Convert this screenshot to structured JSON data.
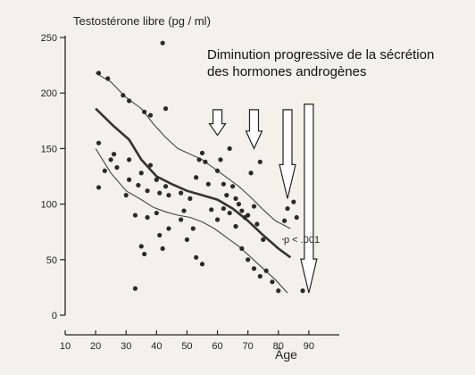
{
  "chart_data": {
    "type": "scatter",
    "ylabel": "Testostérone libre (pg / ml)",
    "xlabel": "Âge",
    "xlim": [
      10,
      100
    ],
    "ylim": [
      0,
      250
    ],
    "x_ticks": [
      10,
      20,
      30,
      40,
      50,
      60,
      70,
      80,
      90
    ],
    "y_ticks": [
      0,
      50,
      100,
      150,
      200,
      250
    ],
    "grid": false,
    "annotation_line1": "Diminution progressive de la sécrétion",
    "annotation_line2": "des hormones androgènes",
    "p_label": "p < .001",
    "points": [
      [
        21,
        218
      ],
      [
        24,
        213
      ],
      [
        29,
        198
      ],
      [
        31,
        193
      ],
      [
        36,
        183
      ],
      [
        38,
        180
      ],
      [
        42,
        245
      ],
      [
        43,
        186
      ],
      [
        21,
        155
      ],
      [
        25,
        140
      ],
      [
        27,
        133
      ],
      [
        31,
        122
      ],
      [
        34,
        117
      ],
      [
        37,
        112
      ],
      [
        41,
        110
      ],
      [
        44,
        108
      ],
      [
        21,
        115
      ],
      [
        23,
        130
      ],
      [
        26,
        145
      ],
      [
        31,
        140
      ],
      [
        35,
        128
      ],
      [
        38,
        135
      ],
      [
        40,
        122
      ],
      [
        43,
        116
      ],
      [
        30,
        108
      ],
      [
        33,
        90
      ],
      [
        37,
        88
      ],
      [
        40,
        92
      ],
      [
        41,
        72
      ],
      [
        44,
        78
      ],
      [
        35,
        62
      ],
      [
        42,
        60
      ],
      [
        33,
        24
      ],
      [
        36,
        55
      ],
      [
        48,
        86
      ],
      [
        49,
        94
      ],
      [
        51,
        105
      ],
      [
        53,
        124
      ],
      [
        54,
        140
      ],
      [
        55,
        146
      ],
      [
        56,
        138
      ],
      [
        57,
        118
      ],
      [
        58,
        95
      ],
      [
        52,
        78
      ],
      [
        50,
        68
      ],
      [
        53,
        52
      ],
      [
        55,
        46
      ],
      [
        48,
        110
      ],
      [
        60,
        130
      ],
      [
        61,
        140
      ],
      [
        62,
        118
      ],
      [
        63,
        108
      ],
      [
        64,
        150
      ],
      [
        65,
        116
      ],
      [
        66,
        105
      ],
      [
        67,
        100
      ],
      [
        68,
        94
      ],
      [
        69,
        88
      ],
      [
        60,
        86
      ],
      [
        62,
        96
      ],
      [
        64,
        92
      ],
      [
        66,
        80
      ],
      [
        70,
        90
      ],
      [
        71,
        128
      ],
      [
        72,
        98
      ],
      [
        73,
        82
      ],
      [
        74,
        138
      ],
      [
        75,
        68
      ],
      [
        68,
        60
      ],
      [
        72,
        42
      ],
      [
        76,
        40
      ],
      [
        78,
        30
      ],
      [
        80,
        22
      ],
      [
        82,
        85
      ],
      [
        83,
        96
      ],
      [
        85,
        102
      ],
      [
        86,
        88
      ],
      [
        88,
        22
      ],
      [
        70,
        50
      ],
      [
        74,
        35
      ]
    ],
    "mean_line": [
      [
        20,
        186
      ],
      [
        26,
        170
      ],
      [
        31,
        158
      ],
      [
        35,
        140
      ],
      [
        40,
        125
      ],
      [
        45,
        118
      ],
      [
        50,
        112
      ],
      [
        55,
        108
      ],
      [
        60,
        104
      ],
      [
        65,
        96
      ],
      [
        70,
        85
      ],
      [
        75,
        72
      ],
      [
        80,
        60
      ],
      [
        84,
        52
      ]
    ],
    "upper_band": [
      [
        20,
        218
      ],
      [
        25,
        210
      ],
      [
        30,
        196
      ],
      [
        35,
        186
      ],
      [
        39,
        172
      ],
      [
        43,
        160
      ],
      [
        47,
        150
      ],
      [
        51,
        145
      ],
      [
        55,
        140
      ],
      [
        59,
        132
      ],
      [
        63,
        124
      ],
      [
        67,
        116
      ],
      [
        71,
        106
      ],
      [
        75,
        95
      ],
      [
        79,
        85
      ],
      [
        84,
        78
      ]
    ],
    "lower_band": [
      [
        20,
        150
      ],
      [
        25,
        128
      ],
      [
        30,
        112
      ],
      [
        35,
        104
      ],
      [
        39,
        97
      ],
      [
        43,
        93
      ],
      [
        47,
        90
      ],
      [
        51,
        88
      ],
      [
        55,
        84
      ],
      [
        59,
        78
      ],
      [
        63,
        70
      ],
      [
        67,
        62
      ],
      [
        71,
        52
      ],
      [
        75,
        42
      ],
      [
        79,
        32
      ],
      [
        83,
        20
      ]
    ],
    "arrows": [
      {
        "x": 60,
        "y_top": 185,
        "y_bottom": 162
      },
      {
        "x": 72,
        "y_top": 185,
        "y_bottom": 150
      },
      {
        "x": 83,
        "y_top": 185,
        "y_bottom": 105
      },
      {
        "x": 90,
        "y_top": 190,
        "y_bottom": 20
      }
    ]
  }
}
